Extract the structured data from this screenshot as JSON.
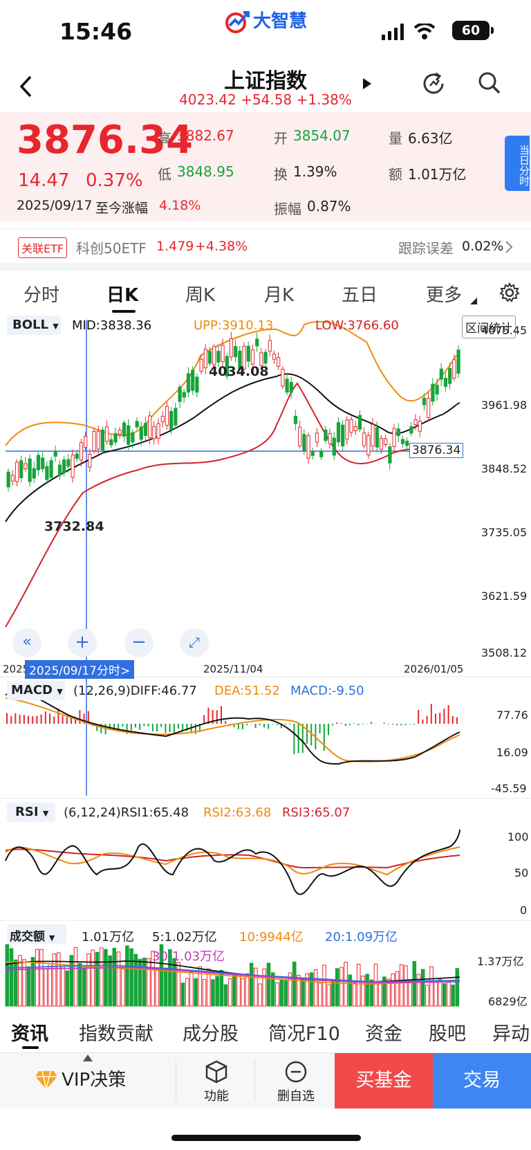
{
  "status": {
    "time": "15:46",
    "brand": "大智慧",
    "battery": "60"
  },
  "nav": {
    "title": "上证指数",
    "sub_price": "4023.42",
    "sub_change": "+54.58",
    "sub_pct": "+1.38%"
  },
  "quote": {
    "price": "3876.34",
    "change": "14.47",
    "pct": "0.37%",
    "date": "2025/09/17",
    "since_label": "至今涨幅",
    "since_value": "4.18%",
    "high_label": "高",
    "high": "3882.67",
    "open_label": "开",
    "open": "3854.07",
    "vol_label": "量",
    "vol": "6.63亿",
    "low_label": "低",
    "low": "3848.95",
    "turnover_label": "换",
    "turnover": "1.39%",
    "amount_label": "额",
    "amount": "1.01万亿",
    "amplitude_label": "振幅",
    "amplitude": "0.87%",
    "intraday_btn": "当日分时"
  },
  "etf": {
    "tag": "关联ETF",
    "name": "科创50ETF",
    "price": "1.479",
    "pct": "+4.38%",
    "err_label": "跟踪误差",
    "err_value": "0.02%"
  },
  "tabs": [
    "分时",
    "日K",
    "周K",
    "月K",
    "五日",
    "更多"
  ],
  "boll": {
    "name": "BOLL",
    "mid": "MID:3838.36",
    "upp": "UPP:3910.13",
    "low": "LOW:3766.60",
    "stat_btn": "区间统计",
    "y_labels": [
      "4075.45",
      "3961.98",
      "3848.52",
      "3735.05",
      "3621.59",
      "3508.12"
    ],
    "high_mark": "4034.08",
    "low_mark": "3732.84",
    "cursor_price": "3876.34",
    "x_labels": [
      "2025",
      "2025/11/04",
      "2026/01/05"
    ],
    "cursor_date": "2025/09/17分时>"
  },
  "macd": {
    "name": "MACD",
    "params": "(12,26,9)DIFF:46.77",
    "dea": "DEA:51.52",
    "macd": "MACD:-9.50",
    "y_labels": [
      "77.76",
      "16.09",
      "-45.59"
    ]
  },
  "rsi": {
    "name": "RSI",
    "params": "(6,12,24)RSI1:65.48",
    "rsi2": "RSI2:63.68",
    "rsi3": "RSI3:65.07",
    "y_labels": [
      "100",
      "50",
      "0"
    ]
  },
  "vol": {
    "name": "成交额",
    "v": "1.01万亿",
    "ma5": "5:1.02万亿",
    "ma10": "10:9944亿",
    "ma20": "20:1.09万亿",
    "ma30": "30:1.03万亿",
    "y_labels": [
      "1.37万亿",
      "6829亿"
    ]
  },
  "bottom_tabs": [
    "资讯",
    "指数贡献",
    "成分股",
    "简况F10",
    "资金",
    "股吧",
    "异动"
  ],
  "toolbar": {
    "vip": "VIP决策",
    "func": "功能",
    "del": "删自选",
    "buy": "买基金",
    "trade": "交易"
  },
  "colors": {
    "up": "#e8262d",
    "down": "#17a43a",
    "mid": "#111111",
    "upp": "#f08a0c",
    "low": "#d0232c",
    "accent": "#1e63e6"
  }
}
